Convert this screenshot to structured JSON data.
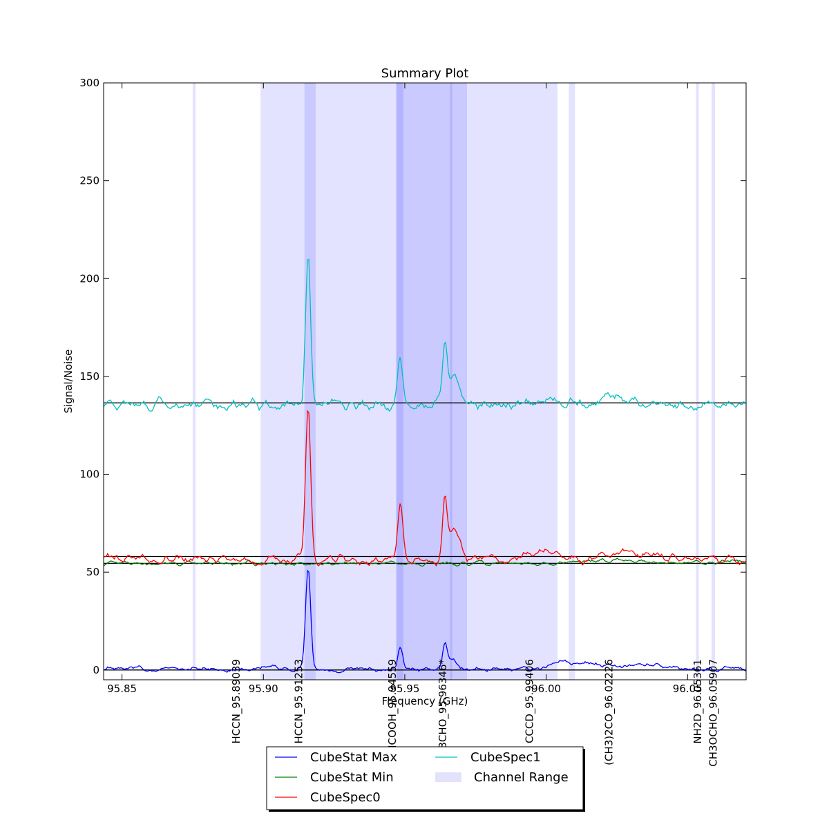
{
  "chart_data": {
    "type": "line",
    "title": "Summary Plot",
    "xlabel": "Frequency (GHz)",
    "ylabel": "Signal/Noise",
    "xlim": [
      95.8435,
      96.0707
    ],
    "ylim": [
      -5,
      300
    ],
    "xticks": [
      "95.85",
      "95.90",
      "95.95",
      "96.00",
      "96.05"
    ],
    "xtick_values": [
      95.85,
      95.9,
      95.95,
      96.0,
      96.05
    ],
    "yticks": [
      "0",
      "50",
      "100",
      "150",
      "200",
      "250",
      "300"
    ],
    "ytick_values": [
      0,
      50,
      100,
      150,
      200,
      250,
      300
    ],
    "grid": false,
    "legend_position": "bottom-center",
    "channel_ranges": [
      [
        95.875,
        95.876
      ],
      [
        95.899,
        96.004
      ],
      [
        95.9145,
        95.9185
      ],
      [
        95.947,
        95.972
      ],
      [
        95.947,
        95.9495
      ],
      [
        95.966,
        95.9668
      ],
      [
        96.008,
        96.0102
      ],
      [
        96.053,
        96.054
      ],
      [
        96.0585,
        96.0597
      ]
    ],
    "noise_levels": [
      0,
      54.5,
      58,
      136.5
    ],
    "line_ids": [
      {
        "label": "HCCN_95.89039",
        "x": 95.89039
      },
      {
        "label": "HCCN_95.91253",
        "x": 95.91253
      },
      {
        "label": "HCOOH_95.94559",
        "x": 95.94559
      },
      {
        "label": "CH3CHO_95.96346*",
        "x": 95.96346
      },
      {
        "label": "CCCD_95.99406",
        "x": 95.99406
      },
      {
        "label": "(CH3)2CO_96.02226",
        "x": 96.02226
      },
      {
        "label": "NH2D_96.05361",
        "x": 96.05361
      },
      {
        "label": "CH3OCHO_96.05907",
        "x": 96.05907
      }
    ],
    "series": [
      {
        "name": "CubeStat Max",
        "color": "#0000ff",
        "baseline": 0.5,
        "noise": 1.2,
        "peaks": [
          {
            "x": 95.9158,
            "height": 53,
            "width": 0.0009
          },
          {
            "x": 95.9484,
            "height": 12,
            "width": 0.0008
          },
          {
            "x": 95.9642,
            "height": 13,
            "width": 0.0008
          },
          {
            "x": 95.9668,
            "height": 4.5,
            "width": 0.0015
          },
          {
            "x": 96.005,
            "height": 2.5,
            "width": 0.004
          },
          {
            "x": 96.015,
            "height": 2.5,
            "width": 0.006
          },
          {
            "x": 96.035,
            "height": 2,
            "width": 0.006
          }
        ]
      },
      {
        "name": "CubeStat Min",
        "color": "#008000",
        "baseline": 54.6,
        "noise": 1.0,
        "peaks": [
          {
            "x": 96.03,
            "height": 1.2,
            "width": 0.01
          },
          {
            "x": 96.066,
            "height": 1.5,
            "width": 0.004
          }
        ]
      },
      {
        "name": "CubeSpec0",
        "color": "#ff0000",
        "baseline": 56.5,
        "noise": 2.2,
        "peaks": [
          {
            "x": 95.9158,
            "height": 78,
            "width": 0.0009
          },
          {
            "x": 95.9484,
            "height": 27,
            "width": 0.0009
          },
          {
            "x": 95.9642,
            "height": 29,
            "width": 0.0008
          },
          {
            "x": 95.9675,
            "height": 16,
            "width": 0.0018
          },
          {
            "x": 96.0,
            "height": 4,
            "width": 0.004
          },
          {
            "x": 96.03,
            "height": 4,
            "width": 0.006
          }
        ]
      },
      {
        "name": "CubeSpec1",
        "color": "#00bfbf",
        "baseline": 135.5,
        "noise": 2.5,
        "peaks": [
          {
            "x": 95.9158,
            "height": 77,
            "width": 0.0009
          },
          {
            "x": 95.9484,
            "height": 26,
            "width": 0.0009
          },
          {
            "x": 95.9642,
            "height": 28,
            "width": 0.0008
          },
          {
            "x": 95.9675,
            "height": 15,
            "width": 0.0018
          },
          {
            "x": 96.0,
            "height": 3,
            "width": 0.004
          },
          {
            "x": 96.025,
            "height": 3,
            "width": 0.006
          }
        ]
      }
    ],
    "legend": [
      {
        "label": "CubeStat Max",
        "kind": "line",
        "color": "#0000ff"
      },
      {
        "label": "CubeStat Min",
        "kind": "line",
        "color": "#008000"
      },
      {
        "label": "CubeSpec0",
        "kind": "line",
        "color": "#ff0000"
      },
      {
        "label": "CubeSpec1",
        "kind": "line",
        "color": "#00bfbf"
      },
      {
        "label": "Channel Range",
        "kind": "patch",
        "color": "#e2e2fc"
      }
    ]
  }
}
